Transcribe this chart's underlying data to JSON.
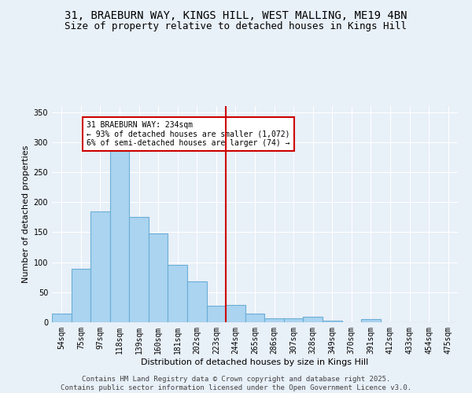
{
  "title_line1": "31, BRAEBURN WAY, KINGS HILL, WEST MALLING, ME19 4BN",
  "title_line2": "Size of property relative to detached houses in Kings Hill",
  "xlabel": "Distribution of detached houses by size in Kings Hill",
  "ylabel": "Number of detached properties",
  "footer": "Contains HM Land Registry data © Crown copyright and database right 2025.\nContains public sector information licensed under the Open Government Licence v3.0.",
  "categories": [
    "54sqm",
    "75sqm",
    "97sqm",
    "118sqm",
    "139sqm",
    "160sqm",
    "181sqm",
    "202sqm",
    "223sqm",
    "244sqm",
    "265sqm",
    "286sqm",
    "307sqm",
    "328sqm",
    "349sqm",
    "370sqm",
    "391sqm",
    "412sqm",
    "433sqm",
    "454sqm",
    "475sqm"
  ],
  "values": [
    14,
    89,
    185,
    290,
    175,
    148,
    95,
    68,
    27,
    29,
    15,
    6,
    7,
    9,
    2,
    0,
    5,
    0,
    0,
    0,
    0
  ],
  "bar_color": "#aad4f0",
  "bar_edge_color": "#6aaed6",
  "vline_color": "#cc0000",
  "annotation_text": "31 BRAEBURN WAY: 234sqm\n← 93% of detached houses are smaller (1,072)\n6% of semi-detached houses are larger (74) →",
  "annotation_box_color": "#cc0000",
  "ylim": [
    0,
    360
  ],
  "yticks": [
    0,
    50,
    100,
    150,
    200,
    250,
    300,
    350
  ],
  "background_color": "#e8f0f8",
  "grid_color": "#ffffff",
  "title_fontsize": 10,
  "subtitle_fontsize": 9,
  "axis_label_fontsize": 8,
  "tick_fontsize": 7,
  "annotation_fontsize": 7,
  "footer_fontsize": 6.5
}
